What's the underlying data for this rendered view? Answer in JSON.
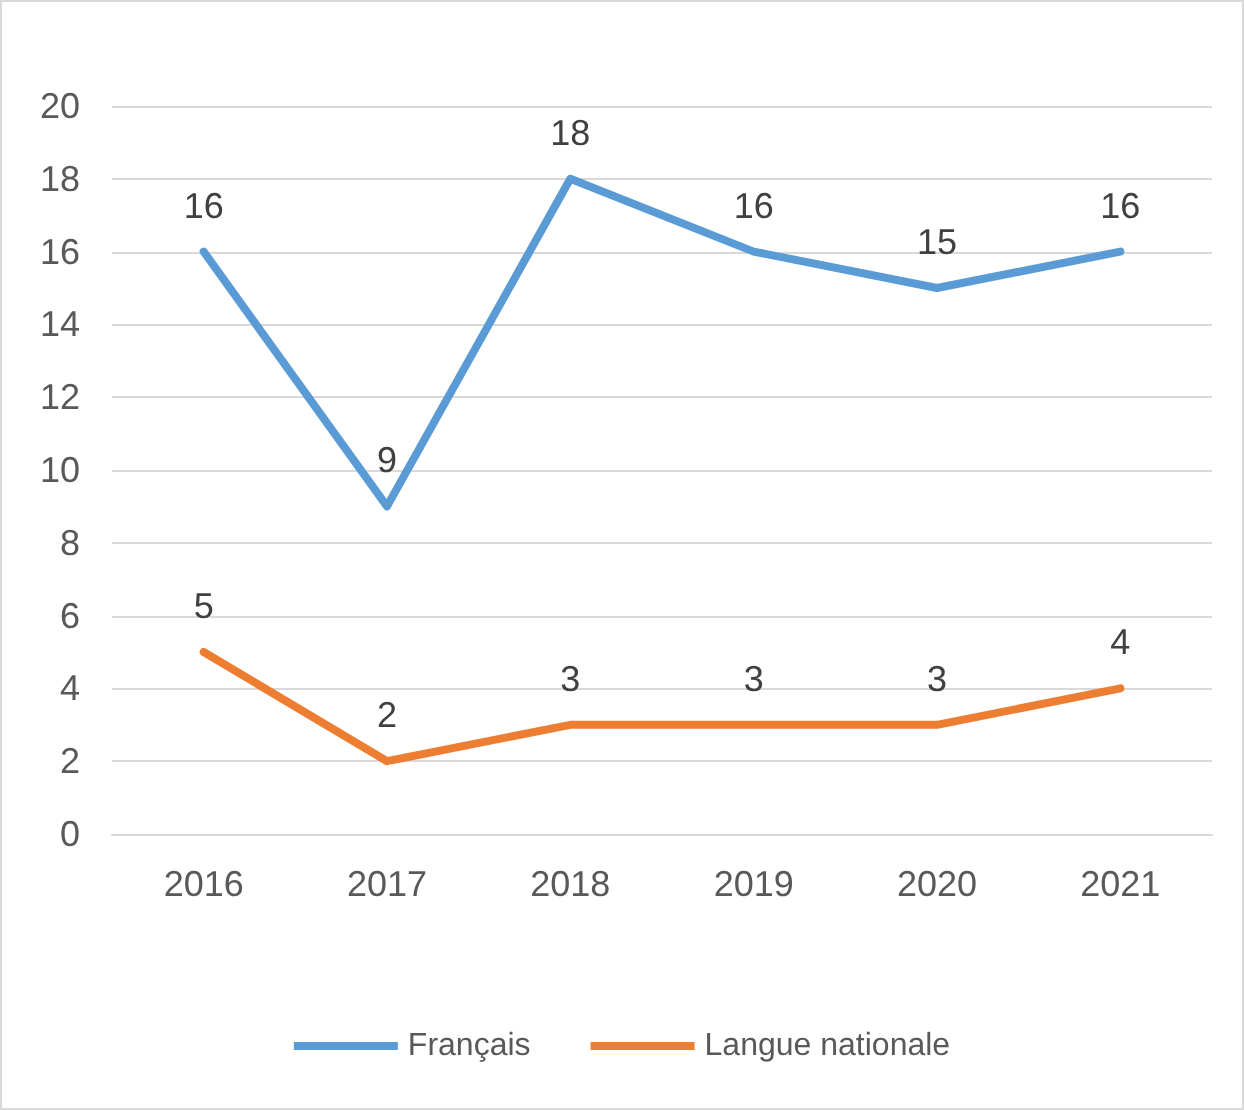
{
  "chart_data": {
    "type": "line",
    "categories": [
      "2016",
      "2017",
      "2018",
      "2019",
      "2020",
      "2021"
    ],
    "series": [
      {
        "name": "Français",
        "color": "#5b9bd5",
        "values": [
          16,
          9,
          18,
          16,
          15,
          16
        ]
      },
      {
        "name": "Langue nationale",
        "color": "#ed7d31",
        "values": [
          5,
          2,
          3,
          3,
          3,
          4
        ]
      }
    ],
    "ylim": [
      0,
      20
    ],
    "yticks": [
      0,
      2,
      4,
      6,
      8,
      10,
      12,
      14,
      16,
      18,
      20
    ],
    "grid": "y",
    "legend": "bottom",
    "marker": "none",
    "line_style": "solid",
    "data_labels": true
  }
}
